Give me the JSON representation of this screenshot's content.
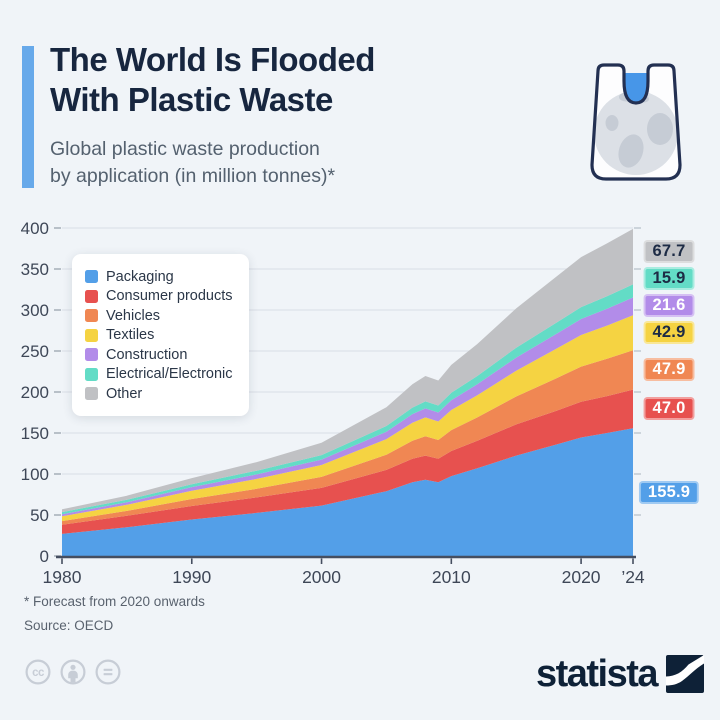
{
  "header": {
    "title_line1": "The World Is Flooded",
    "title_line2": "With Plastic Waste",
    "subtitle_line1": "Global plastic waste production",
    "subtitle_line2": "by application (in million tonnes)*"
  },
  "footnotes": {
    "forecast": "* Forecast from 2020 onwards",
    "source": "Source: OECD"
  },
  "branding": {
    "logo_text": "statista",
    "license_icons": [
      "cc-icon",
      "attribution-icon",
      "no-derivatives-icon"
    ]
  },
  "colors": {
    "background": "#f0f4f8",
    "accent_bar": "#67a9ea",
    "title": "#17263f",
    "subtitle": "#54616f",
    "grid": "#dde2e9",
    "axis": "#454e60",
    "tick_label": "#3e4757",
    "legend_text": "#2b3748"
  },
  "chart_data": {
    "type": "area",
    "stacked": true,
    "title": "Global plastic waste production by application (in million tonnes)",
    "ylabel": "",
    "xlabel": "",
    "ylim": [
      0,
      400
    ],
    "yticks": [
      0,
      50,
      100,
      150,
      200,
      250,
      300,
      350,
      400
    ],
    "grid": true,
    "legend_position": "top-left",
    "x": [
      1980,
      1985,
      1990,
      1995,
      2000,
      2005,
      2007,
      2008,
      2009,
      2010,
      2012,
      2015,
      2018,
      2020,
      2022,
      2024
    ],
    "xticks": [
      {
        "year": 1980,
        "label": "1980"
      },
      {
        "year": 1990,
        "label": "1990"
      },
      {
        "year": 2000,
        "label": "2000"
      },
      {
        "year": 2010,
        "label": "2010"
      },
      {
        "year": 2020,
        "label": "2020"
      },
      {
        "year": 2024,
        "label": "’24"
      }
    ],
    "series": [
      {
        "name": "Packaging",
        "color": "#539fe8",
        "value_label": "155.9",
        "label_text_color": "#ffffff",
        "values": [
          27,
          35,
          44.5,
          52.5,
          61.5,
          79,
          90,
          93,
          90,
          97.5,
          107,
          122.5,
          135.5,
          144.5,
          150,
          155.9
        ]
      },
      {
        "name": "Consumer products",
        "color": "#e7514f",
        "value_label": "47.0",
        "label_text_color": "#ffffff",
        "values": [
          11,
          14,
          16.5,
          19,
          21.5,
          26,
          28.5,
          29.5,
          28.5,
          30.5,
          33.5,
          38,
          41,
          43.5,
          45,
          47.0
        ]
      },
      {
        "name": "Vehicles",
        "color": "#f08753",
        "value_label": "47.9",
        "label_text_color": "#ffffff",
        "values": [
          4.5,
          6,
          8.5,
          10.5,
          13.5,
          18.5,
          22,
          23.5,
          23,
          25.5,
          28.5,
          34,
          39.5,
          43,
          45.5,
          47.9
        ]
      },
      {
        "name": "Textiles",
        "color": "#f5d342",
        "value_label": "42.9",
        "label_text_color": "#1d2b45",
        "values": [
          6,
          7.5,
          10,
          12,
          14.5,
          19,
          22,
          23,
          22.5,
          24.5,
          27,
          31.5,
          36,
          38.5,
          40.5,
          42.9
        ]
      },
      {
        "name": "Construction",
        "color": "#b28ce9",
        "value_label": "21.6",
        "label_text_color": "#ffffff",
        "values": [
          2.5,
          3,
          4.5,
          5.5,
          6.5,
          9,
          10.5,
          11,
          11,
          12,
          13.5,
          16,
          18,
          19.5,
          20.5,
          21.6
        ]
      },
      {
        "name": "Electrical/Electronic",
        "color": "#63dcc6",
        "value_label": "15.9",
        "label_text_color": "#1d2b45",
        "values": [
          2.5,
          3,
          3.5,
          4.5,
          5.5,
          7,
          8,
          8.5,
          8.5,
          9,
          10,
          12,
          13.5,
          14.5,
          15.2,
          15.9
        ]
      },
      {
        "name": "Other",
        "color": "#c0c1c4",
        "value_label": "67.7",
        "label_text_color": "#1d2b45",
        "values": [
          3.5,
          5,
          7.5,
          10.5,
          15,
          23,
          28.5,
          31,
          30.5,
          34,
          39,
          48,
          56,
          61,
          64.5,
          67.7
        ]
      }
    ]
  }
}
